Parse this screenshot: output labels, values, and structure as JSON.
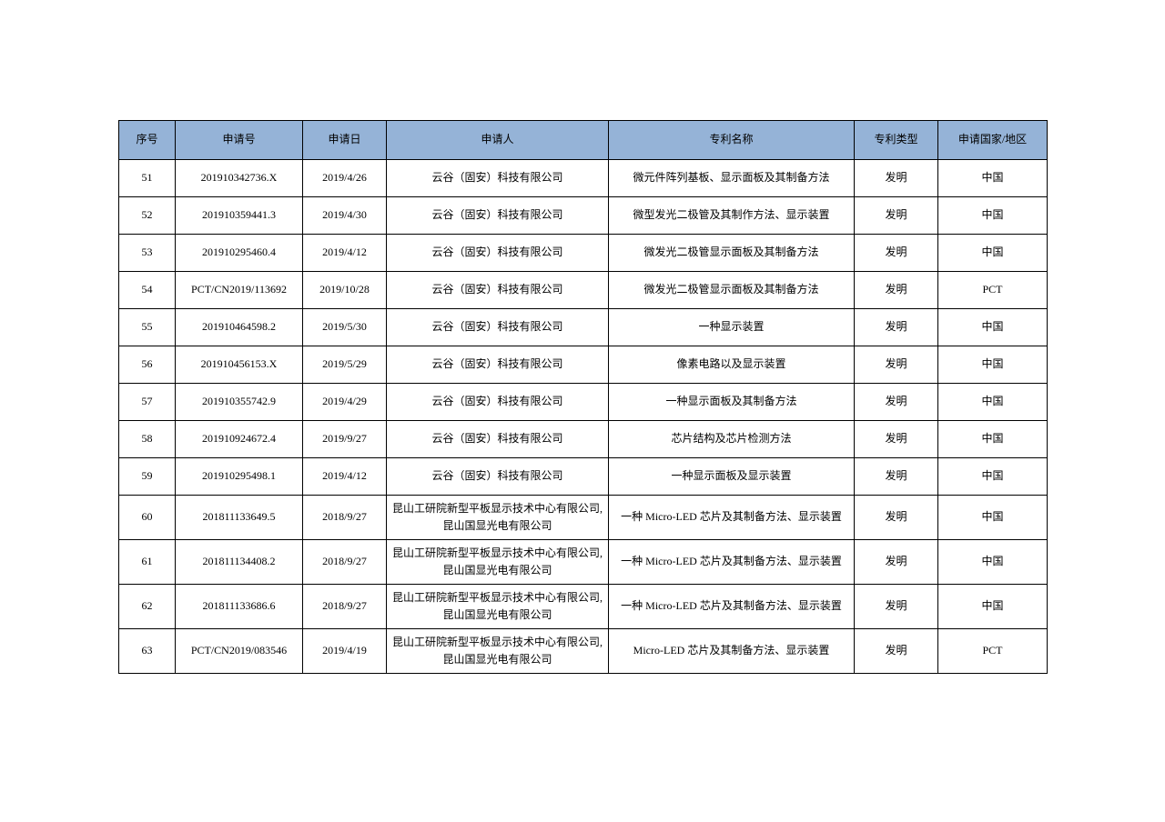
{
  "table": {
    "header_bg": "#95b3d7",
    "border_color": "#000000",
    "columns": [
      {
        "key": "seq",
        "label": "序号"
      },
      {
        "key": "app_no",
        "label": "申请号"
      },
      {
        "key": "app_date",
        "label": "申请日"
      },
      {
        "key": "applicant",
        "label": "申请人"
      },
      {
        "key": "title",
        "label": "专利名称"
      },
      {
        "key": "type",
        "label": "专利类型"
      },
      {
        "key": "region",
        "label": "申请国家/地区"
      }
    ],
    "rows": [
      {
        "seq": "51",
        "app_no": "201910342736.X",
        "app_date": "2019/4/26",
        "applicant": "云谷（固安）科技有限公司",
        "title": "微元件阵列基板、显示面板及其制备方法",
        "type": "发明",
        "region": "中国",
        "tall": false
      },
      {
        "seq": "52",
        "app_no": "201910359441.3",
        "app_date": "2019/4/30",
        "applicant": "云谷（固安）科技有限公司",
        "title": "微型发光二极管及其制作方法、显示装置",
        "type": "发明",
        "region": "中国",
        "tall": false
      },
      {
        "seq": "53",
        "app_no": "201910295460.4",
        "app_date": "2019/4/12",
        "applicant": "云谷（固安）科技有限公司",
        "title": "微发光二极管显示面板及其制备方法",
        "type": "发明",
        "region": "中国",
        "tall": false
      },
      {
        "seq": "54",
        "app_no": "PCT/CN2019/113692",
        "app_date": "2019/10/28",
        "applicant": "云谷（固安）科技有限公司",
        "title": "微发光二极管显示面板及其制备方法",
        "type": "发明",
        "region": "PCT",
        "tall": false
      },
      {
        "seq": "55",
        "app_no": "201910464598.2",
        "app_date": "2019/5/30",
        "applicant": "云谷（固安）科技有限公司",
        "title": "一种显示装置",
        "type": "发明",
        "region": "中国",
        "tall": false
      },
      {
        "seq": "56",
        "app_no": "201910456153.X",
        "app_date": "2019/5/29",
        "applicant": "云谷（固安）科技有限公司",
        "title": "像素电路以及显示装置",
        "type": "发明",
        "region": "中国",
        "tall": false
      },
      {
        "seq": "57",
        "app_no": "201910355742.9",
        "app_date": "2019/4/29",
        "applicant": "云谷（固安）科技有限公司",
        "title": "一种显示面板及其制备方法",
        "type": "发明",
        "region": "中国",
        "tall": false
      },
      {
        "seq": "58",
        "app_no": "201910924672.4",
        "app_date": "2019/9/27",
        "applicant": "云谷（固安）科技有限公司",
        "title": "芯片结构及芯片检测方法",
        "type": "发明",
        "region": "中国",
        "tall": false
      },
      {
        "seq": "59",
        "app_no": "201910295498.1",
        "app_date": "2019/4/12",
        "applicant": "云谷（固安）科技有限公司",
        "title": "一种显示面板及显示装置",
        "type": "发明",
        "region": "中国",
        "tall": false
      },
      {
        "seq": "60",
        "app_no": "201811133649.5",
        "app_date": "2018/9/27",
        "applicant": "昆山工研院新型平板显示技术中心有限公司,昆山国显光电有限公司",
        "title": "一种 Micro-LED 芯片及其制备方法、显示装置",
        "type": "发明",
        "region": "中国",
        "tall": true
      },
      {
        "seq": "61",
        "app_no": "201811134408.2",
        "app_date": "2018/9/27",
        "applicant": "昆山工研院新型平板显示技术中心有限公司,昆山国显光电有限公司",
        "title": "一种 Micro-LED 芯片及其制备方法、显示装置",
        "type": "发明",
        "region": "中国",
        "tall": true
      },
      {
        "seq": "62",
        "app_no": "201811133686.6",
        "app_date": "2018/9/27",
        "applicant": "昆山工研院新型平板显示技术中心有限公司,昆山国显光电有限公司",
        "title": "一种 Micro-LED 芯片及其制备方法、显示装置",
        "type": "发明",
        "region": "中国",
        "tall": true
      },
      {
        "seq": "63",
        "app_no": "PCT/CN2019/083546",
        "app_date": "2019/4/19",
        "applicant": "昆山工研院新型平板显示技术中心有限公司,昆山国显光电有限公司",
        "title": "Micro-LED 芯片及其制备方法、显示装置",
        "type": "发明",
        "region": "PCT",
        "tall": true
      }
    ]
  }
}
